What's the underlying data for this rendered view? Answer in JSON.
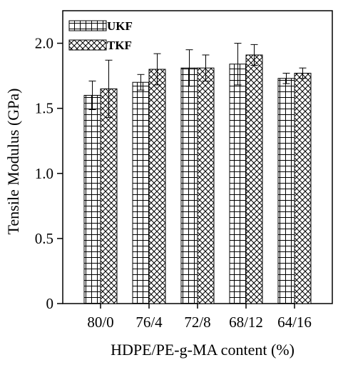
{
  "chart_data": {
    "type": "bar",
    "xlabel": "HDPE/PE-g-MA content (%)",
    "ylabel": "Tensile Modulus (GPa)",
    "ylim": [
      0,
      2.25
    ],
    "yticks": [
      0,
      0.5,
      1.0,
      1.5,
      2.0
    ],
    "ytick_labels": [
      "0",
      "0.5",
      "1.0",
      "1.5",
      "2.0"
    ],
    "categories": [
      "80/0",
      "76/4",
      "72/8",
      "68/12",
      "64/16"
    ],
    "grid": false,
    "legend_position": "top-left",
    "series": [
      {
        "name": "UKF",
        "pattern": "grid",
        "values": [
          1.6,
          1.7,
          1.81,
          1.84,
          1.73
        ],
        "errors": [
          0.11,
          0.06,
          0.14,
          0.16,
          0.04
        ]
      },
      {
        "name": "TKF",
        "pattern": "crosshatch",
        "values": [
          1.65,
          1.8,
          1.81,
          1.91,
          1.77
        ],
        "errors": [
          0.22,
          0.12,
          0.1,
          0.08,
          0.04
        ]
      }
    ]
  }
}
